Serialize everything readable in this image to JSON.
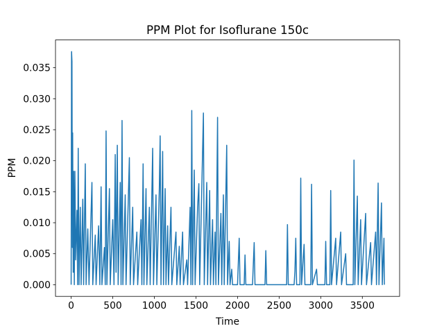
{
  "chart_data": {
    "type": "line",
    "title": "PPM Plot for Isoflurane 150c",
    "xlabel": "Time",
    "ylabel": "PPM",
    "color": "#1f77b4",
    "x": [
      0,
      5,
      10,
      15,
      18,
      25,
      30,
      38,
      45,
      55,
      70,
      78,
      85,
      95,
      110,
      120,
      140,
      150,
      170,
      180,
      200,
      215,
      250,
      260,
      290,
      300,
      330,
      345,
      360,
      370,
      400,
      410,
      420,
      430,
      460,
      470,
      500,
      515,
      530,
      540,
      555,
      565,
      590,
      600,
      612,
      622,
      650,
      660,
      700,
      710,
      740,
      750,
      790,
      800,
      840,
      850,
      865,
      875,
      900,
      910,
      940,
      950,
      980,
      990,
      1020,
      1030,
      1060,
      1070,
      1080,
      1100,
      1110,
      1130,
      1140,
      1160,
      1170,
      1200,
      1210,
      1260,
      1270,
      1300,
      1310,
      1340,
      1350,
      1390,
      1400,
      1430,
      1440,
      1450,
      1460,
      1480,
      1490,
      1520,
      1535,
      1545,
      1590,
      1600,
      1630,
      1640,
      1665,
      1675,
      1700,
      1710,
      1730,
      1740,
      1760,
      1770,
      1800,
      1810,
      1830,
      1840,
      1870,
      1880,
      1900,
      1910,
      1930,
      1940,
      2000,
      2020,
      2030,
      2080,
      2090,
      2100,
      2180,
      2200,
      2210,
      2330,
      2340,
      2350,
      2590,
      2600,
      2610,
      2680,
      2690,
      2700,
      2710,
      2750,
      2760,
      2770,
      2800,
      2810,
      2880,
      2890,
      2900,
      2950,
      2960,
      3050,
      3060,
      3070,
      3110,
      3120,
      3130,
      3180,
      3190,
      3240,
      3250,
      3300,
      3310,
      3390,
      3400,
      3410,
      3440,
      3450,
      3480,
      3490,
      3540,
      3550,
      3600,
      3610,
      3660,
      3670,
      3690,
      3700,
      3730,
      3740,
      3760,
      3765
    ],
    "values": [
      0,
      0.0376,
      0.036,
      0.006,
      0.0245,
      0.002,
      0.0183,
      0,
      0.0183,
      0.004,
      0.012,
      0,
      0.022,
      0,
      0.0125,
      0,
      0.0138,
      0,
      0.0195,
      0,
      0.009,
      0,
      0.0165,
      0,
      0.008,
      0,
      0.0095,
      0,
      0.0158,
      0,
      0.006,
      0,
      0.0248,
      0,
      0.0155,
      0,
      0.0105,
      0,
      0.021,
      0.002,
      0.0225,
      0,
      0.0165,
      0,
      0.0265,
      0,
      0.0145,
      0,
      0.0205,
      0,
      0.0125,
      0,
      0.0085,
      0,
      0.0105,
      0,
      0.0195,
      0,
      0.0155,
      0,
      0.0125,
      0,
      0.022,
      0,
      0.0145,
      0,
      0.0155,
      0.024,
      0,
      0.0215,
      0,
      0.0155,
      0,
      0.0095,
      0,
      0.0125,
      0,
      0.0085,
      0,
      0.0062,
      0,
      0.0085,
      0,
      0.004,
      0,
      0.0125,
      0,
      0.0281,
      0,
      0.0185,
      0,
      0.0125,
      0.0163,
      0,
      0.0277,
      0,
      0.0165,
      0,
      0.0152,
      0,
      0.0105,
      0,
      0.0085,
      0,
      0.027,
      0,
      0.0115,
      0,
      0.0145,
      0,
      0.0225,
      0,
      0.007,
      0,
      0.0025,
      0,
      0,
      0.0075,
      0,
      0,
      0.0048,
      0,
      0,
      0.0068,
      0,
      0,
      0.0055,
      0,
      0,
      0.0097,
      0,
      0,
      0.0022,
      0.0075,
      0,
      0,
      0.0172,
      0,
      0.0065,
      0,
      0,
      0.0162,
      0,
      0.0025,
      0,
      0,
      0.007,
      0,
      0,
      0.0152,
      0,
      0.0075,
      0,
      0.0085,
      0,
      0.005,
      0,
      0,
      0.0201,
      0,
      0.0143,
      0,
      0.0105,
      0,
      0.0115,
      0,
      0.0068,
      0,
      0.0085,
      0,
      0.0164,
      0,
      0.0132,
      0,
      0.0075,
      0
    ],
    "xlim": [
      -188,
      3948
    ],
    "ylim": [
      -0.00188,
      0.03948
    ],
    "xticks": [
      0,
      500,
      1000,
      1500,
      2000,
      2500,
      3000,
      3500
    ],
    "yticks": [
      {
        "value": 0,
        "label": "0.000"
      },
      {
        "value": 0.005,
        "label": "0.005"
      },
      {
        "value": 0.01,
        "label": "0.010"
      },
      {
        "value": 0.015,
        "label": "0.015"
      },
      {
        "value": 0.02,
        "label": "0.020"
      },
      {
        "value": 0.025,
        "label": "0.025"
      },
      {
        "value": 0.03,
        "label": "0.030"
      },
      {
        "value": 0.035,
        "label": "0.035"
      }
    ]
  }
}
